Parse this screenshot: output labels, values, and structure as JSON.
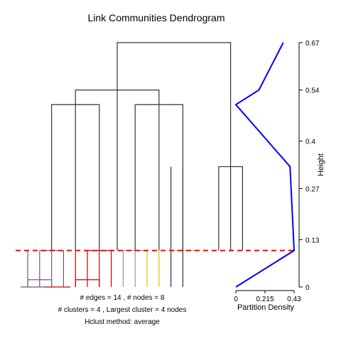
{
  "chart_data": {
    "type": "dendrogram",
    "title": "Link Communities Dendrogram",
    "ylabel": "Height",
    "ylim": [
      0,
      0.67
    ],
    "yticks": [
      0,
      0.13,
      0.27,
      0.4,
      0.54,
      0.67
    ],
    "cut_height": 0.1,
    "cut_line_color": "#ff0000",
    "leaf_count": 14,
    "merges": [
      {
        "left": 0,
        "right": 1,
        "height": 0.02,
        "color": "#6b5b7b"
      },
      {
        "left": 2,
        "right": 3,
        "height": 0.02,
        "color": "#cc0000"
      },
      {
        "left": 4,
        "right": 5,
        "height": 0.1,
        "color": "#999999"
      },
      {
        "left": 6,
        "right": 7,
        "height": 0.1,
        "color": "#e0c000"
      },
      {
        "left": 0.5,
        "right": 1.5,
        "height": 0.1,
        "color": "#6b5b7b"
      },
      {
        "left": 2.5,
        "right": 3.5,
        "height": 0.1,
        "color": "#cc0000"
      },
      {
        "left": 1,
        "right": 3,
        "height": 0.5,
        "color": "#333333"
      },
      {
        "left": 4.5,
        "right": 6.5,
        "height": 0.5,
        "color": "#333333"
      },
      {
        "left": 2,
        "right": 5.5,
        "height": 0.54,
        "color": "#333333"
      },
      {
        "left": 8,
        "right": 9,
        "height": 0.33,
        "color": "#333333"
      },
      {
        "left": 3.75,
        "right": 8.5,
        "height": 0.67,
        "color": "#333333"
      }
    ],
    "info_lines": [
      "# edges =  14 ,    # nodes =  8",
      "# clusters =  4 ,   Largest cluster =  4  nodes",
      "Hclust method:  average"
    ],
    "density": {
      "xlabel": "Partition Density",
      "xlim": [
        0,
        0.43
      ],
      "xticks": [
        "0",
        "0.215",
        "0.43"
      ],
      "color": "#0000ff",
      "points": [
        {
          "height": 0.0,
          "density": 0.0
        },
        {
          "height": 0.1,
          "density": 0.43
        },
        {
          "height": 0.33,
          "density": 0.4
        },
        {
          "height": 0.5,
          "density": 0.0
        },
        {
          "height": 0.54,
          "density": 0.17
        },
        {
          "height": 0.67,
          "density": 0.35
        }
      ]
    }
  }
}
